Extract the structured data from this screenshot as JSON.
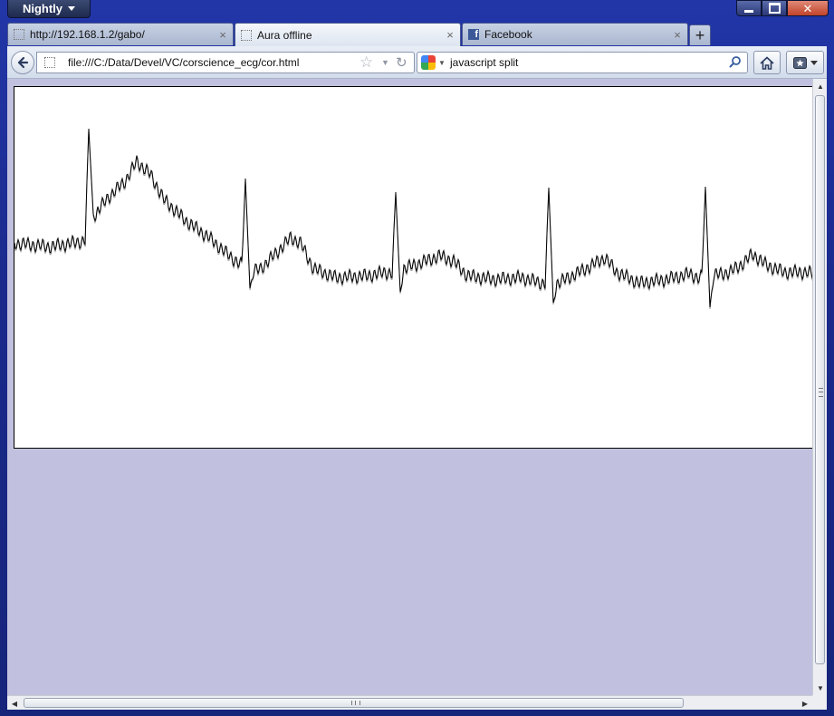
{
  "app": {
    "menu_label": "Nightly"
  },
  "tabs": [
    {
      "title": "http://192.168.1.2/gabo/",
      "favicon": "blank-page-icon",
      "active": false
    },
    {
      "title": "Aura offline",
      "favicon": "blank-page-icon",
      "active": true
    },
    {
      "title": "Facebook",
      "favicon": "facebook-icon",
      "active": false
    }
  ],
  "tab_close_glyph": "×",
  "new_tab_glyph": "+",
  "navbar": {
    "url": "file:///C:/Data/Devel/VC/corscience_ecg/cor.html",
    "search_query": "javascript split",
    "search_engine": "google-icon"
  },
  "colors": {
    "content_background": "#c1c1df",
    "canvas_background": "#ffffff",
    "trace": "#000000"
  },
  "ecg_trace": {
    "beats": [
      {
        "peak": 142,
        "trough": 236
      },
      {
        "peak": 197,
        "trough": 318
      },
      {
        "peak": 212,
        "trough": 322
      },
      {
        "peak": 207,
        "trough": 334
      },
      {
        "peak": 206,
        "trough": 339
      }
    ]
  }
}
